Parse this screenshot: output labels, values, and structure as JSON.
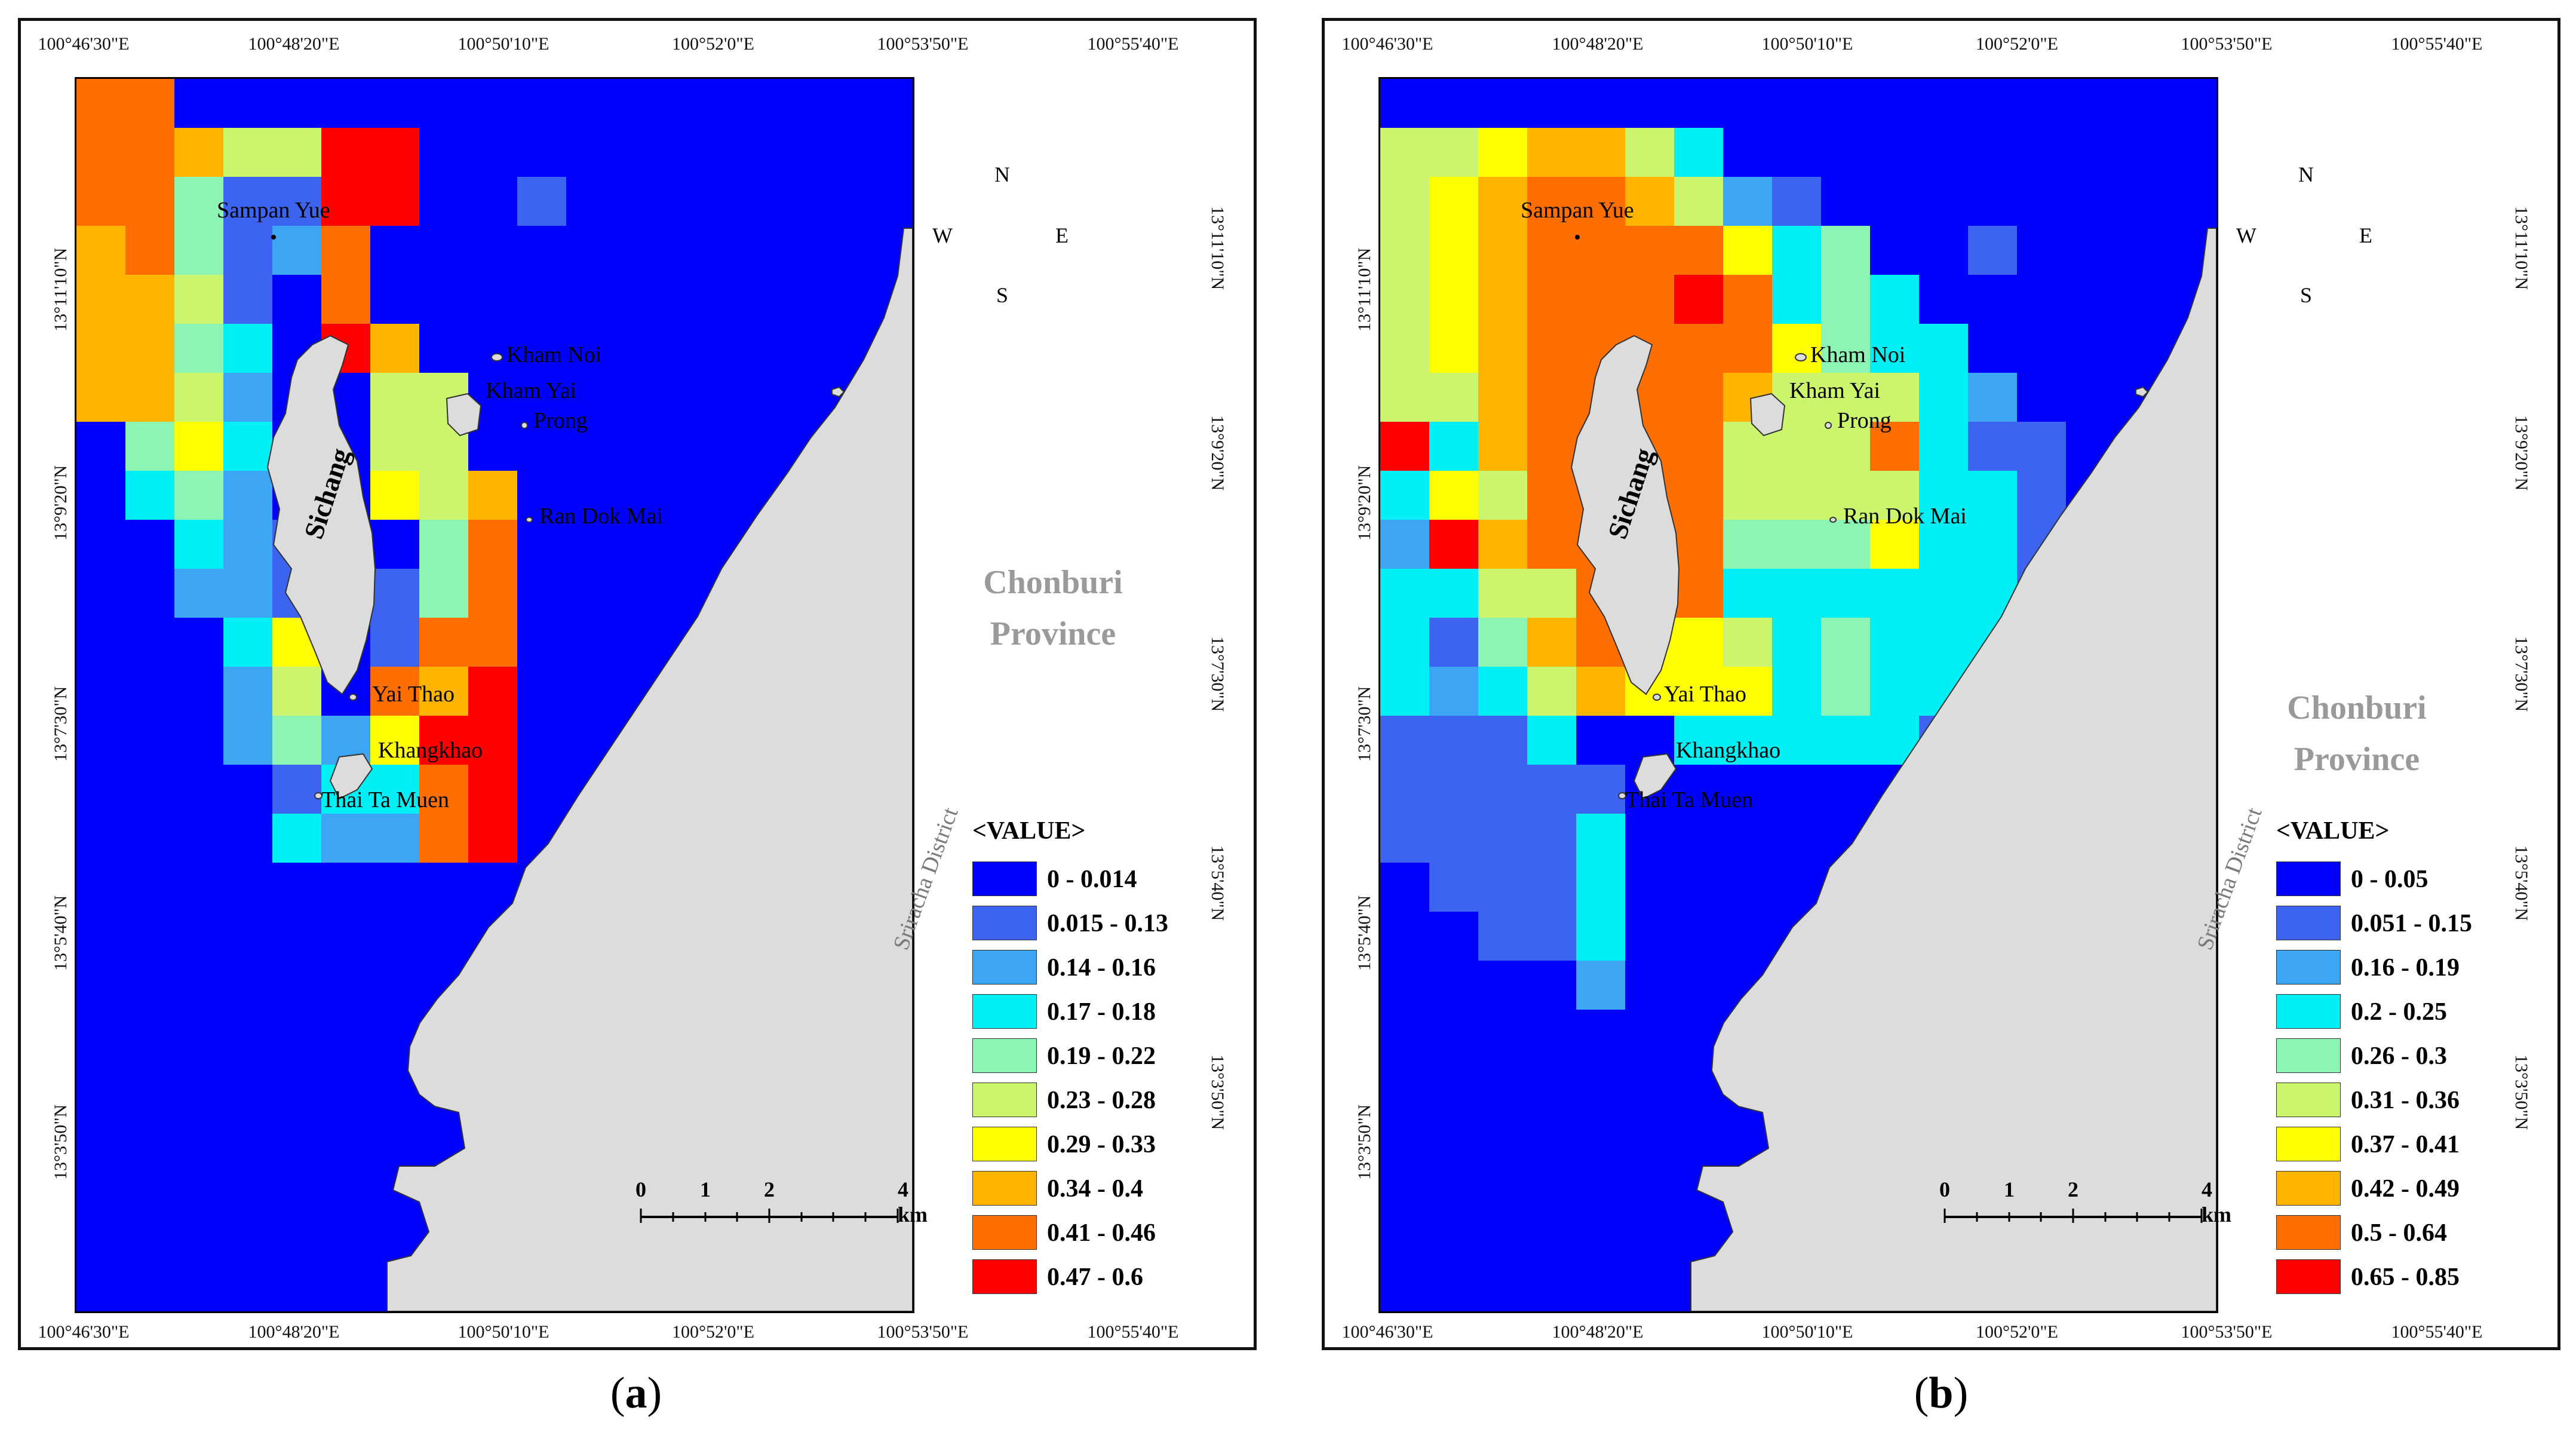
{
  "panels": [
    {
      "id": "a",
      "caption_text": "a",
      "lon_ticks": [
        "100°46'30\"E",
        "100°48'20\"E",
        "100°50'10\"E",
        "100°52'0\"E",
        "100°53'50\"E",
        "100°55'40\"E"
      ],
      "lat_ticks": [
        "13°11'10\"N",
        "13°9'20\"N",
        "13°7'30\"N",
        "13°5'40\"N",
        "13°3'50\"N"
      ],
      "legend_title": "<VALUE>",
      "legend": [
        {
          "label": "0 - 0.014",
          "color": "#0000ff"
        },
        {
          "label": "0.015 - 0.13",
          "color": "#3c64f0"
        },
        {
          "label": "0.14 - 0.16",
          "color": "#3ca6f5"
        },
        {
          "label": "0.17 - 0.18",
          "color": "#00f0f5"
        },
        {
          "label": "0.19 - 0.22",
          "color": "#8cf5b4"
        },
        {
          "label": "0.23 - 0.28",
          "color": "#ccf56e"
        },
        {
          "label": "0.29 - 0.33",
          "color": "#ffff00"
        },
        {
          "label": "0.34 - 0.4",
          "color": "#ffb400"
        },
        {
          "label": "0.41 - 0.46",
          "color": "#ff6e00"
        },
        {
          "label": "0.47 - 0.6",
          "color": "#ff0000"
        }
      ],
      "places": [
        "Sampan Yue",
        "Kham Noi",
        "Kham Yai",
        "Prong",
        "Ran Dok Mai",
        "Yai Thao",
        "Khangkhao",
        "Thai Ta Muen"
      ],
      "island_label": "Sichang",
      "province_label": "Chonburi\nProvince",
      "district_label": "Sriracha District",
      "scale_labels": [
        "0",
        "1",
        "2",
        "4 km"
      ],
      "compass": {
        "n": "N",
        "s": "S",
        "e": "E",
        "w": "W"
      },
      "grid_legend_index": [
        [
          8,
          8,
          0,
          0,
          0,
          0,
          0,
          0,
          0,
          0
        ],
        [
          8,
          8,
          7,
          5,
          5,
          9,
          9,
          0,
          0,
          0
        ],
        [
          8,
          8,
          4,
          1,
          1,
          9,
          9,
          0,
          0,
          1
        ],
        [
          7,
          8,
          4,
          1,
          2,
          8,
          0,
          0,
          0,
          0
        ],
        [
          7,
          7,
          5,
          1,
          0,
          8,
          0,
          0,
          0,
          0
        ],
        [
          7,
          7,
          4,
          3,
          0,
          9,
          7,
          0,
          0,
          0
        ],
        [
          7,
          7,
          5,
          2,
          0,
          0,
          5,
          5,
          0,
          0
        ],
        [
          0,
          4,
          6,
          3,
          0,
          0,
          5,
          5,
          0,
          0
        ],
        [
          0,
          3,
          4,
          2,
          0,
          0,
          6,
          5,
          7,
          0
        ],
        [
          0,
          0,
          3,
          2,
          1,
          0,
          0,
          4,
          8,
          0
        ],
        [
          0,
          0,
          2,
          2,
          1,
          0,
          1,
          4,
          8,
          0
        ],
        [
          0,
          0,
          0,
          3,
          6,
          0,
          1,
          8,
          8,
          0
        ],
        [
          0,
          0,
          0,
          2,
          5,
          0,
          8,
          7,
          9,
          0
        ],
        [
          0,
          0,
          0,
          2,
          4,
          2,
          6,
          9,
          9,
          0
        ],
        [
          0,
          0,
          0,
          0,
          1,
          3,
          3,
          8,
          9,
          0
        ],
        [
          0,
          0,
          0,
          0,
          3,
          2,
          2,
          8,
          9,
          0
        ]
      ]
    },
    {
      "id": "b",
      "caption_text": "b",
      "lon_ticks": [
        "100°46'30\"E",
        "100°48'20\"E",
        "100°50'10\"E",
        "100°52'0\"E",
        "100°53'50\"E",
        "100°55'40\"E"
      ],
      "lat_ticks": [
        "13°11'10\"N",
        "13°9'20\"N",
        "13°7'30\"N",
        "13°5'40\"N",
        "13°3'50\"N"
      ],
      "legend_title": "<VALUE>",
      "legend": [
        {
          "label": "0 - 0.05",
          "color": "#0000ff"
        },
        {
          "label": "0.051 - 0.15",
          "color": "#3c64f0"
        },
        {
          "label": "0.16 - 0.19",
          "color": "#3ca6f5"
        },
        {
          "label": "0.2 - 0.25",
          "color": "#00f0f5"
        },
        {
          "label": "0.26 - 0.3",
          "color": "#8cf5b4"
        },
        {
          "label": "0.31 - 0.36",
          "color": "#ccf56e"
        },
        {
          "label": "0.37 - 0.41",
          "color": "#ffff00"
        },
        {
          "label": "0.42 - 0.49",
          "color": "#ffb400"
        },
        {
          "label": "0.5 - 0.64",
          "color": "#ff6e00"
        },
        {
          "label": "0.65 - 0.85",
          "color": "#ff0000"
        }
      ],
      "places": [
        "Sampan Yue",
        "Kham Noi",
        "Kham Yai",
        "Prong",
        "Ran Dok Mai",
        "Yai Thao",
        "Khangkhao",
        "Thai Ta Muen"
      ],
      "island_label": "Sichang",
      "province_label": "Chonburi\nProvince",
      "district_label": "Sriracha District",
      "scale_labels": [
        "0",
        "1",
        "2",
        "4 km"
      ],
      "compass": {
        "n": "N",
        "s": "S",
        "e": "E",
        "w": "W"
      },
      "grid_legend_index": [
        [
          0,
          0,
          0,
          0,
          0,
          0,
          0,
          0,
          0,
          0,
          0,
          0,
          0,
          0,
          0
        ],
        [
          5,
          5,
          6,
          7,
          7,
          5,
          3,
          0,
          0,
          0,
          0,
          0,
          0,
          0,
          0
        ],
        [
          5,
          6,
          7,
          8,
          8,
          7,
          5,
          2,
          1,
          0,
          0,
          0,
          0,
          0,
          0
        ],
        [
          5,
          6,
          7,
          8,
          8,
          8,
          8,
          6,
          3,
          4,
          0,
          0,
          1,
          0,
          0
        ],
        [
          5,
          6,
          7,
          8,
          8,
          8,
          9,
          8,
          3,
          4,
          3,
          0,
          0,
          0,
          0
        ],
        [
          5,
          6,
          7,
          8,
          8,
          8,
          8,
          8,
          6,
          4,
          3,
          3,
          0,
          0,
          0
        ],
        [
          5,
          5,
          7,
          8,
          8,
          8,
          8,
          7,
          5,
          5,
          5,
          3,
          2,
          0,
          0
        ],
        [
          9,
          3,
          7,
          8,
          8,
          8,
          8,
          5,
          5,
          5,
          8,
          3,
          1,
          1,
          0
        ],
        [
          3,
          6,
          5,
          8,
          8,
          8,
          8,
          5,
          5,
          5,
          5,
          3,
          3,
          1,
          0
        ],
        [
          2,
          9,
          7,
          8,
          8,
          8,
          8,
          4,
          4,
          4,
          6,
          3,
          3,
          1,
          1
        ],
        [
          3,
          3,
          5,
          5,
          8,
          8,
          8,
          3,
          3,
          3,
          3,
          3,
          3,
          1,
          0
        ],
        [
          3,
          1,
          4,
          7,
          8,
          6,
          6,
          5,
          3,
          4,
          3,
          3,
          3,
          1,
          0
        ],
        [
          3,
          2,
          3,
          5,
          7,
          6,
          6,
          6,
          3,
          4,
          3,
          3,
          3,
          1,
          0
        ],
        [
          1,
          1,
          1,
          3,
          0,
          0,
          3,
          3,
          3,
          3,
          3,
          1,
          0,
          0,
          0
        ],
        [
          1,
          1,
          1,
          1,
          1,
          0,
          0,
          0,
          0,
          0,
          0,
          0,
          0,
          0,
          0
        ],
        [
          1,
          1,
          1,
          1,
          3,
          0,
          0,
          0,
          0,
          0,
          0,
          0,
          0,
          0,
          0
        ],
        [
          0,
          1,
          1,
          1,
          3,
          0,
          0,
          0,
          0,
          0,
          0,
          0,
          0,
          0,
          0
        ],
        [
          0,
          0,
          1,
          1,
          3,
          0,
          0,
          0,
          0,
          0,
          0,
          0,
          0,
          0,
          0
        ],
        [
          0,
          0,
          0,
          0,
          2,
          0,
          0,
          0,
          0,
          0,
          0,
          0,
          0,
          0,
          0
        ]
      ]
    }
  ]
}
